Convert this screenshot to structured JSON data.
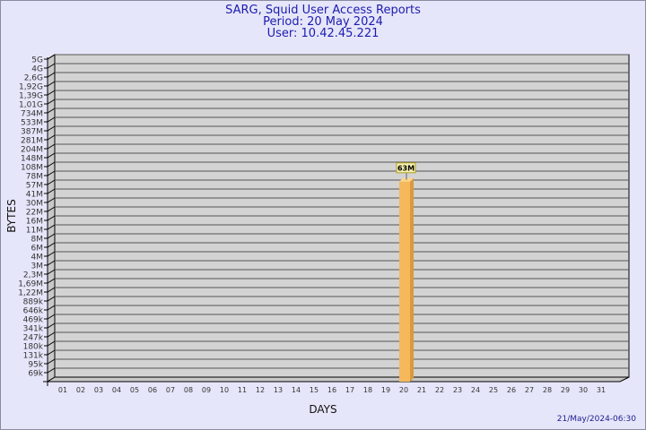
{
  "header": {
    "title": "SARG, Squid User Access Reports",
    "period": "Period: 20 May 2024",
    "user": "User: 10.42.45.221"
  },
  "footer": {
    "generated": "21/May/2024-06:30"
  },
  "colors": {
    "background": "#e6e6fa",
    "plot": "#d3d3d3",
    "bar": "#f5b85a",
    "bar_side": "#d99a3c",
    "title": "#1c1cb0"
  },
  "chart_data": {
    "type": "bar",
    "xlabel": "DAYS",
    "ylabel": "BYTES",
    "y_scale": "log",
    "grid": true,
    "y_tick_labels": [
      "5G",
      "4G",
      "2,6G",
      "1,92G",
      "1,39G",
      "1,01G",
      "734M",
      "533M",
      "387M",
      "281M",
      "204M",
      "148M",
      "108M",
      "78M",
      "57M",
      "41M",
      "30M",
      "22M",
      "16M",
      "11M",
      "8M",
      "6M",
      "4M",
      "3M",
      "2,3M",
      "1,69M",
      "1,22M",
      "889k",
      "646k",
      "469k",
      "341k",
      "247k",
      "180k",
      "131k",
      "95k",
      "69k"
    ],
    "categories": [
      "01",
      "02",
      "03",
      "04",
      "05",
      "06",
      "07",
      "08",
      "09",
      "10",
      "11",
      "12",
      "13",
      "14",
      "15",
      "16",
      "17",
      "18",
      "19",
      "20",
      "21",
      "22",
      "23",
      "24",
      "25",
      "26",
      "27",
      "28",
      "29",
      "30",
      "31"
    ],
    "bars": [
      {
        "day": "20",
        "value_label": "63M"
      }
    ]
  }
}
